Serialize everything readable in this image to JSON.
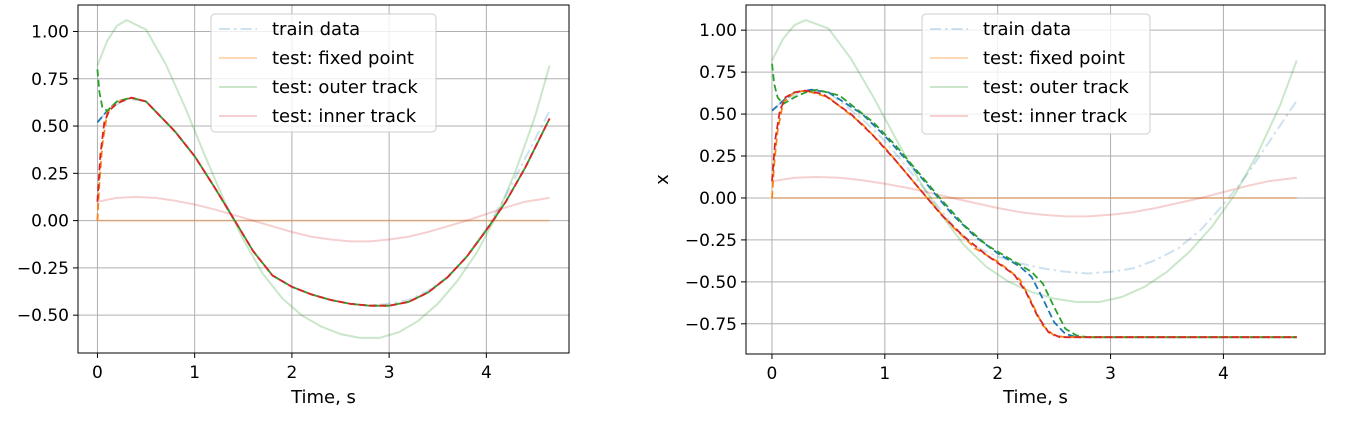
{
  "chart_data": [
    {
      "type": "line",
      "title": "",
      "xlabel": "Time, s",
      "ylabel": "",
      "xlim": [
        -0.2,
        4.85
      ],
      "ylim": [
        -0.7,
        1.14
      ],
      "xticks": [
        "0",
        "1",
        "2",
        "3",
        "4"
      ],
      "yticks": [
        "1.00",
        "0.75",
        "0.50",
        "0.25",
        "0.00",
        "−0.25",
        "−0.50"
      ],
      "grid": true,
      "legend_position": "top-center",
      "series": [
        {
          "name": "train data",
          "color": "#1f77b4",
          "style": "dashdot",
          "alpha": 0.22,
          "x": [
            0.0,
            0.1,
            0.3,
            0.5,
            0.8,
            1.0,
            1.2,
            1.4,
            1.6,
            1.8,
            2.0,
            2.2,
            2.4,
            2.6,
            2.8,
            3.0,
            3.2,
            3.4,
            3.6,
            3.8,
            4.0,
            4.2,
            4.4,
            4.65
          ],
          "y": [
            0.52,
            0.58,
            0.645,
            0.63,
            0.47,
            0.34,
            0.18,
            0.01,
            -0.16,
            -0.29,
            -0.35,
            -0.39,
            -0.42,
            -0.44,
            -0.45,
            -0.44,
            -0.42,
            -0.37,
            -0.3,
            -0.19,
            -0.04,
            0.13,
            0.33,
            0.58
          ]
        },
        {
          "name": "test: fixed point",
          "color": "#ff7f0e",
          "style": "solid",
          "alpha": 0.3,
          "x": [
            0.0,
            4.65
          ],
          "y": [
            0.0,
            0.0
          ]
        },
        {
          "name": "test: outer track",
          "color": "#2ca02c",
          "style": "solid",
          "alpha": 0.25,
          "x": [
            0.0,
            0.1,
            0.2,
            0.3,
            0.5,
            0.7,
            0.9,
            1.1,
            1.3,
            1.5,
            1.7,
            1.9,
            2.1,
            2.3,
            2.5,
            2.7,
            2.9,
            3.1,
            3.3,
            3.5,
            3.7,
            3.9,
            4.1,
            4.3,
            4.5,
            4.65
          ],
          "y": [
            0.82,
            0.95,
            1.03,
            1.06,
            1.01,
            0.83,
            0.6,
            0.35,
            0.11,
            -0.1,
            -0.28,
            -0.41,
            -0.5,
            -0.56,
            -0.6,
            -0.62,
            -0.62,
            -0.59,
            -0.53,
            -0.44,
            -0.32,
            -0.17,
            0.02,
            0.26,
            0.55,
            0.82
          ]
        },
        {
          "name": "test: inner track",
          "color": "#d62728",
          "style": "solid",
          "alpha": 0.22,
          "x": [
            0.0,
            0.2,
            0.4,
            0.6,
            0.8,
            1.0,
            1.2,
            1.4,
            1.6,
            1.8,
            2.0,
            2.2,
            2.4,
            2.6,
            2.8,
            3.0,
            3.2,
            3.4,
            3.6,
            3.8,
            4.0,
            4.2,
            4.4,
            4.65
          ],
          "y": [
            0.1,
            0.12,
            0.125,
            0.12,
            0.105,
            0.085,
            0.06,
            0.03,
            0.0,
            -0.03,
            -0.06,
            -0.085,
            -0.1,
            -0.11,
            -0.11,
            -0.1,
            -0.085,
            -0.06,
            -0.03,
            0.0,
            0.035,
            0.07,
            0.1,
            0.12
          ]
        },
        {
          "name": "",
          "color": "#1f77b4",
          "style": "dashed",
          "alpha": 1,
          "x": [
            0.0,
            0.05,
            0.1,
            0.2,
            0.35,
            0.5,
            0.8,
            1.0,
            1.2,
            1.4,
            1.6,
            1.8,
            2.0,
            2.2,
            2.4,
            2.6,
            2.8,
            3.0,
            3.2,
            3.4,
            3.6,
            3.8,
            4.0,
            4.2,
            4.4,
            4.65
          ],
          "y": [
            0.52,
            0.55,
            0.58,
            0.63,
            0.65,
            0.63,
            0.47,
            0.34,
            0.18,
            0.01,
            -0.16,
            -0.29,
            -0.35,
            -0.39,
            -0.42,
            -0.44,
            -0.45,
            -0.45,
            -0.43,
            -0.38,
            -0.3,
            -0.19,
            -0.05,
            0.1,
            0.28,
            0.54
          ]
        },
        {
          "name": "",
          "color": "#ff7f0e",
          "style": "dashed",
          "alpha": 1,
          "x": [
            0.0,
            0.02,
            0.05,
            0.1,
            0.2,
            0.35,
            0.5,
            0.8,
            1.0,
            1.2,
            1.4,
            1.6,
            1.8,
            2.0,
            2.2,
            2.4,
            2.6,
            2.8,
            3.0,
            3.2,
            3.4,
            3.6,
            3.8,
            4.0,
            4.2,
            4.4,
            4.65
          ],
          "y": [
            0.0,
            0.2,
            0.4,
            0.57,
            0.63,
            0.65,
            0.63,
            0.47,
            0.34,
            0.18,
            0.01,
            -0.16,
            -0.29,
            -0.35,
            -0.39,
            -0.42,
            -0.44,
            -0.45,
            -0.45,
            -0.43,
            -0.38,
            -0.3,
            -0.19,
            -0.05,
            0.1,
            0.28,
            0.54
          ]
        },
        {
          "name": "",
          "color": "#2ca02c",
          "style": "dashed",
          "alpha": 1,
          "x": [
            0.0,
            0.02,
            0.05,
            0.1,
            0.2,
            0.35,
            0.5,
            0.8,
            1.0,
            1.2,
            1.4,
            1.6,
            1.8,
            2.0,
            2.2,
            2.4,
            2.6,
            2.8,
            3.0,
            3.2,
            3.4,
            3.6,
            3.8,
            4.0,
            4.2,
            4.4,
            4.65
          ],
          "y": [
            0.8,
            0.68,
            0.6,
            0.58,
            0.63,
            0.65,
            0.63,
            0.47,
            0.34,
            0.18,
            0.01,
            -0.16,
            -0.29,
            -0.35,
            -0.39,
            -0.42,
            -0.44,
            -0.45,
            -0.45,
            -0.43,
            -0.38,
            -0.3,
            -0.19,
            -0.05,
            0.1,
            0.28,
            0.54
          ]
        },
        {
          "name": "",
          "color": "#d62728",
          "style": "dashed",
          "alpha": 1,
          "x": [
            0.0,
            0.03,
            0.07,
            0.12,
            0.2,
            0.35,
            0.5,
            0.8,
            1.0,
            1.2,
            1.4,
            1.6,
            1.8,
            2.0,
            2.2,
            2.4,
            2.6,
            2.8,
            3.0,
            3.2,
            3.4,
            3.6,
            3.8,
            4.0,
            4.2,
            4.4,
            4.65
          ],
          "y": [
            0.1,
            0.35,
            0.52,
            0.58,
            0.62,
            0.65,
            0.63,
            0.47,
            0.34,
            0.18,
            0.01,
            -0.16,
            -0.29,
            -0.35,
            -0.39,
            -0.42,
            -0.44,
            -0.45,
            -0.45,
            -0.43,
            -0.38,
            -0.3,
            -0.19,
            -0.05,
            0.1,
            0.28,
            0.54
          ]
        }
      ]
    },
    {
      "type": "line",
      "title": "",
      "xlabel": "Time, s",
      "ylabel": "x",
      "xlim": [
        -0.23,
        4.9
      ],
      "ylim": [
        -0.93,
        1.15
      ],
      "xticks": [
        "0",
        "1",
        "2",
        "3",
        "4"
      ],
      "yticks": [
        "1.00",
        "0.75",
        "0.50",
        "0.25",
        "0.00",
        "−0.25",
        "−0.50",
        "−0.75"
      ],
      "grid": true,
      "legend_position": "top-center",
      "series": [
        {
          "name": "train data",
          "color": "#1f77b4",
          "style": "dashdot",
          "alpha": 0.22,
          "x": [
            0.0,
            0.1,
            0.3,
            0.5,
            0.8,
            1.0,
            1.2,
            1.4,
            1.6,
            1.8,
            2.0,
            2.2,
            2.4,
            2.6,
            2.8,
            3.0,
            3.2,
            3.4,
            3.6,
            3.8,
            4.0,
            4.2,
            4.4,
            4.65
          ],
          "y": [
            0.52,
            0.58,
            0.645,
            0.63,
            0.47,
            0.34,
            0.18,
            0.01,
            -0.16,
            -0.29,
            -0.35,
            -0.39,
            -0.42,
            -0.44,
            -0.45,
            -0.44,
            -0.42,
            -0.37,
            -0.3,
            -0.19,
            -0.04,
            0.13,
            0.33,
            0.58
          ]
        },
        {
          "name": "test: fixed point",
          "color": "#ff7f0e",
          "style": "solid",
          "alpha": 0.3,
          "x": [
            0.0,
            4.65
          ],
          "y": [
            0.0,
            0.0
          ]
        },
        {
          "name": "test: outer track",
          "color": "#2ca02c",
          "style": "solid",
          "alpha": 0.25,
          "x": [
            0.0,
            0.1,
            0.2,
            0.3,
            0.5,
            0.7,
            0.9,
            1.1,
            1.3,
            1.5,
            1.7,
            1.9,
            2.1,
            2.3,
            2.5,
            2.7,
            2.9,
            3.1,
            3.3,
            3.5,
            3.7,
            3.9,
            4.1,
            4.3,
            4.5,
            4.65
          ],
          "y": [
            0.82,
            0.95,
            1.03,
            1.06,
            1.01,
            0.83,
            0.6,
            0.35,
            0.11,
            -0.1,
            -0.28,
            -0.41,
            -0.5,
            -0.56,
            -0.6,
            -0.62,
            -0.62,
            -0.59,
            -0.53,
            -0.44,
            -0.32,
            -0.17,
            0.02,
            0.26,
            0.55,
            0.82
          ]
        },
        {
          "name": "test: inner track",
          "color": "#d62728",
          "style": "solid",
          "alpha": 0.22,
          "x": [
            0.0,
            0.2,
            0.4,
            0.6,
            0.8,
            1.0,
            1.2,
            1.4,
            1.6,
            1.8,
            2.0,
            2.2,
            2.4,
            2.6,
            2.8,
            3.0,
            3.2,
            3.4,
            3.6,
            3.8,
            4.0,
            4.2,
            4.4,
            4.65
          ],
          "y": [
            0.1,
            0.12,
            0.125,
            0.12,
            0.105,
            0.085,
            0.06,
            0.03,
            0.0,
            -0.03,
            -0.06,
            -0.085,
            -0.1,
            -0.11,
            -0.11,
            -0.1,
            -0.085,
            -0.06,
            -0.03,
            0.0,
            0.035,
            0.07,
            0.1,
            0.12
          ]
        },
        {
          "name": "",
          "color": "#1f77b4",
          "style": "dashed",
          "alpha": 1,
          "x": [
            0.0,
            0.05,
            0.1,
            0.2,
            0.35,
            0.5,
            0.8,
            1.0,
            1.2,
            1.4,
            1.6,
            1.8,
            2.0,
            2.2,
            2.3,
            2.4,
            2.5,
            2.6,
            2.7,
            3.0,
            3.5,
            4.0,
            4.65
          ],
          "y": [
            0.52,
            0.55,
            0.58,
            0.63,
            0.645,
            0.63,
            0.5,
            0.37,
            0.22,
            0.06,
            -0.1,
            -0.23,
            -0.33,
            -0.41,
            -0.47,
            -0.6,
            -0.74,
            -0.81,
            -0.83,
            -0.83,
            -0.83,
            -0.83,
            -0.83
          ]
        },
        {
          "name": "",
          "color": "#ff7f0e",
          "style": "dashed",
          "alpha": 1,
          "x": [
            0.0,
            0.02,
            0.05,
            0.1,
            0.2,
            0.3,
            0.5,
            0.8,
            1.0,
            1.2,
            1.4,
            1.6,
            1.8,
            2.0,
            2.1,
            2.2,
            2.3,
            2.4,
            2.5,
            2.6,
            3.0,
            3.5,
            4.0,
            4.65
          ],
          "y": [
            0.0,
            0.2,
            0.4,
            0.57,
            0.63,
            0.64,
            0.6,
            0.44,
            0.3,
            0.14,
            -0.02,
            -0.17,
            -0.3,
            -0.38,
            -0.43,
            -0.49,
            -0.62,
            -0.76,
            -0.82,
            -0.83,
            -0.83,
            -0.83,
            -0.83,
            -0.83
          ]
        },
        {
          "name": "",
          "color": "#2ca02c",
          "style": "dashed",
          "alpha": 1,
          "x": [
            0.0,
            0.02,
            0.05,
            0.1,
            0.2,
            0.3,
            0.4,
            0.6,
            0.9,
            1.1,
            1.3,
            1.5,
            1.7,
            1.9,
            2.1,
            2.3,
            2.4,
            2.5,
            2.6,
            2.7,
            2.8,
            3.0,
            3.5,
            4.0,
            4.65
          ],
          "y": [
            0.8,
            0.68,
            0.6,
            0.56,
            0.6,
            0.63,
            0.645,
            0.61,
            0.45,
            0.31,
            0.15,
            -0.01,
            -0.16,
            -0.28,
            -0.36,
            -0.44,
            -0.51,
            -0.65,
            -0.78,
            -0.82,
            -0.83,
            -0.83,
            -0.83,
            -0.83,
            -0.83
          ]
        },
        {
          "name": "",
          "color": "#d62728",
          "style": "dashed",
          "alpha": 1,
          "x": [
            0.0,
            0.03,
            0.07,
            0.12,
            0.2,
            0.3,
            0.45,
            0.7,
            0.9,
            1.1,
            1.3,
            1.5,
            1.7,
            1.9,
            2.05,
            2.15,
            2.25,
            2.35,
            2.45,
            2.55,
            2.65,
            3.0,
            3.5,
            4.0,
            4.65
          ],
          "y": [
            0.1,
            0.35,
            0.52,
            0.6,
            0.63,
            0.64,
            0.62,
            0.5,
            0.37,
            0.22,
            0.06,
            -0.1,
            -0.23,
            -0.34,
            -0.41,
            -0.46,
            -0.56,
            -0.7,
            -0.8,
            -0.83,
            -0.83,
            -0.83,
            -0.83,
            -0.83,
            -0.83
          ]
        }
      ]
    }
  ]
}
